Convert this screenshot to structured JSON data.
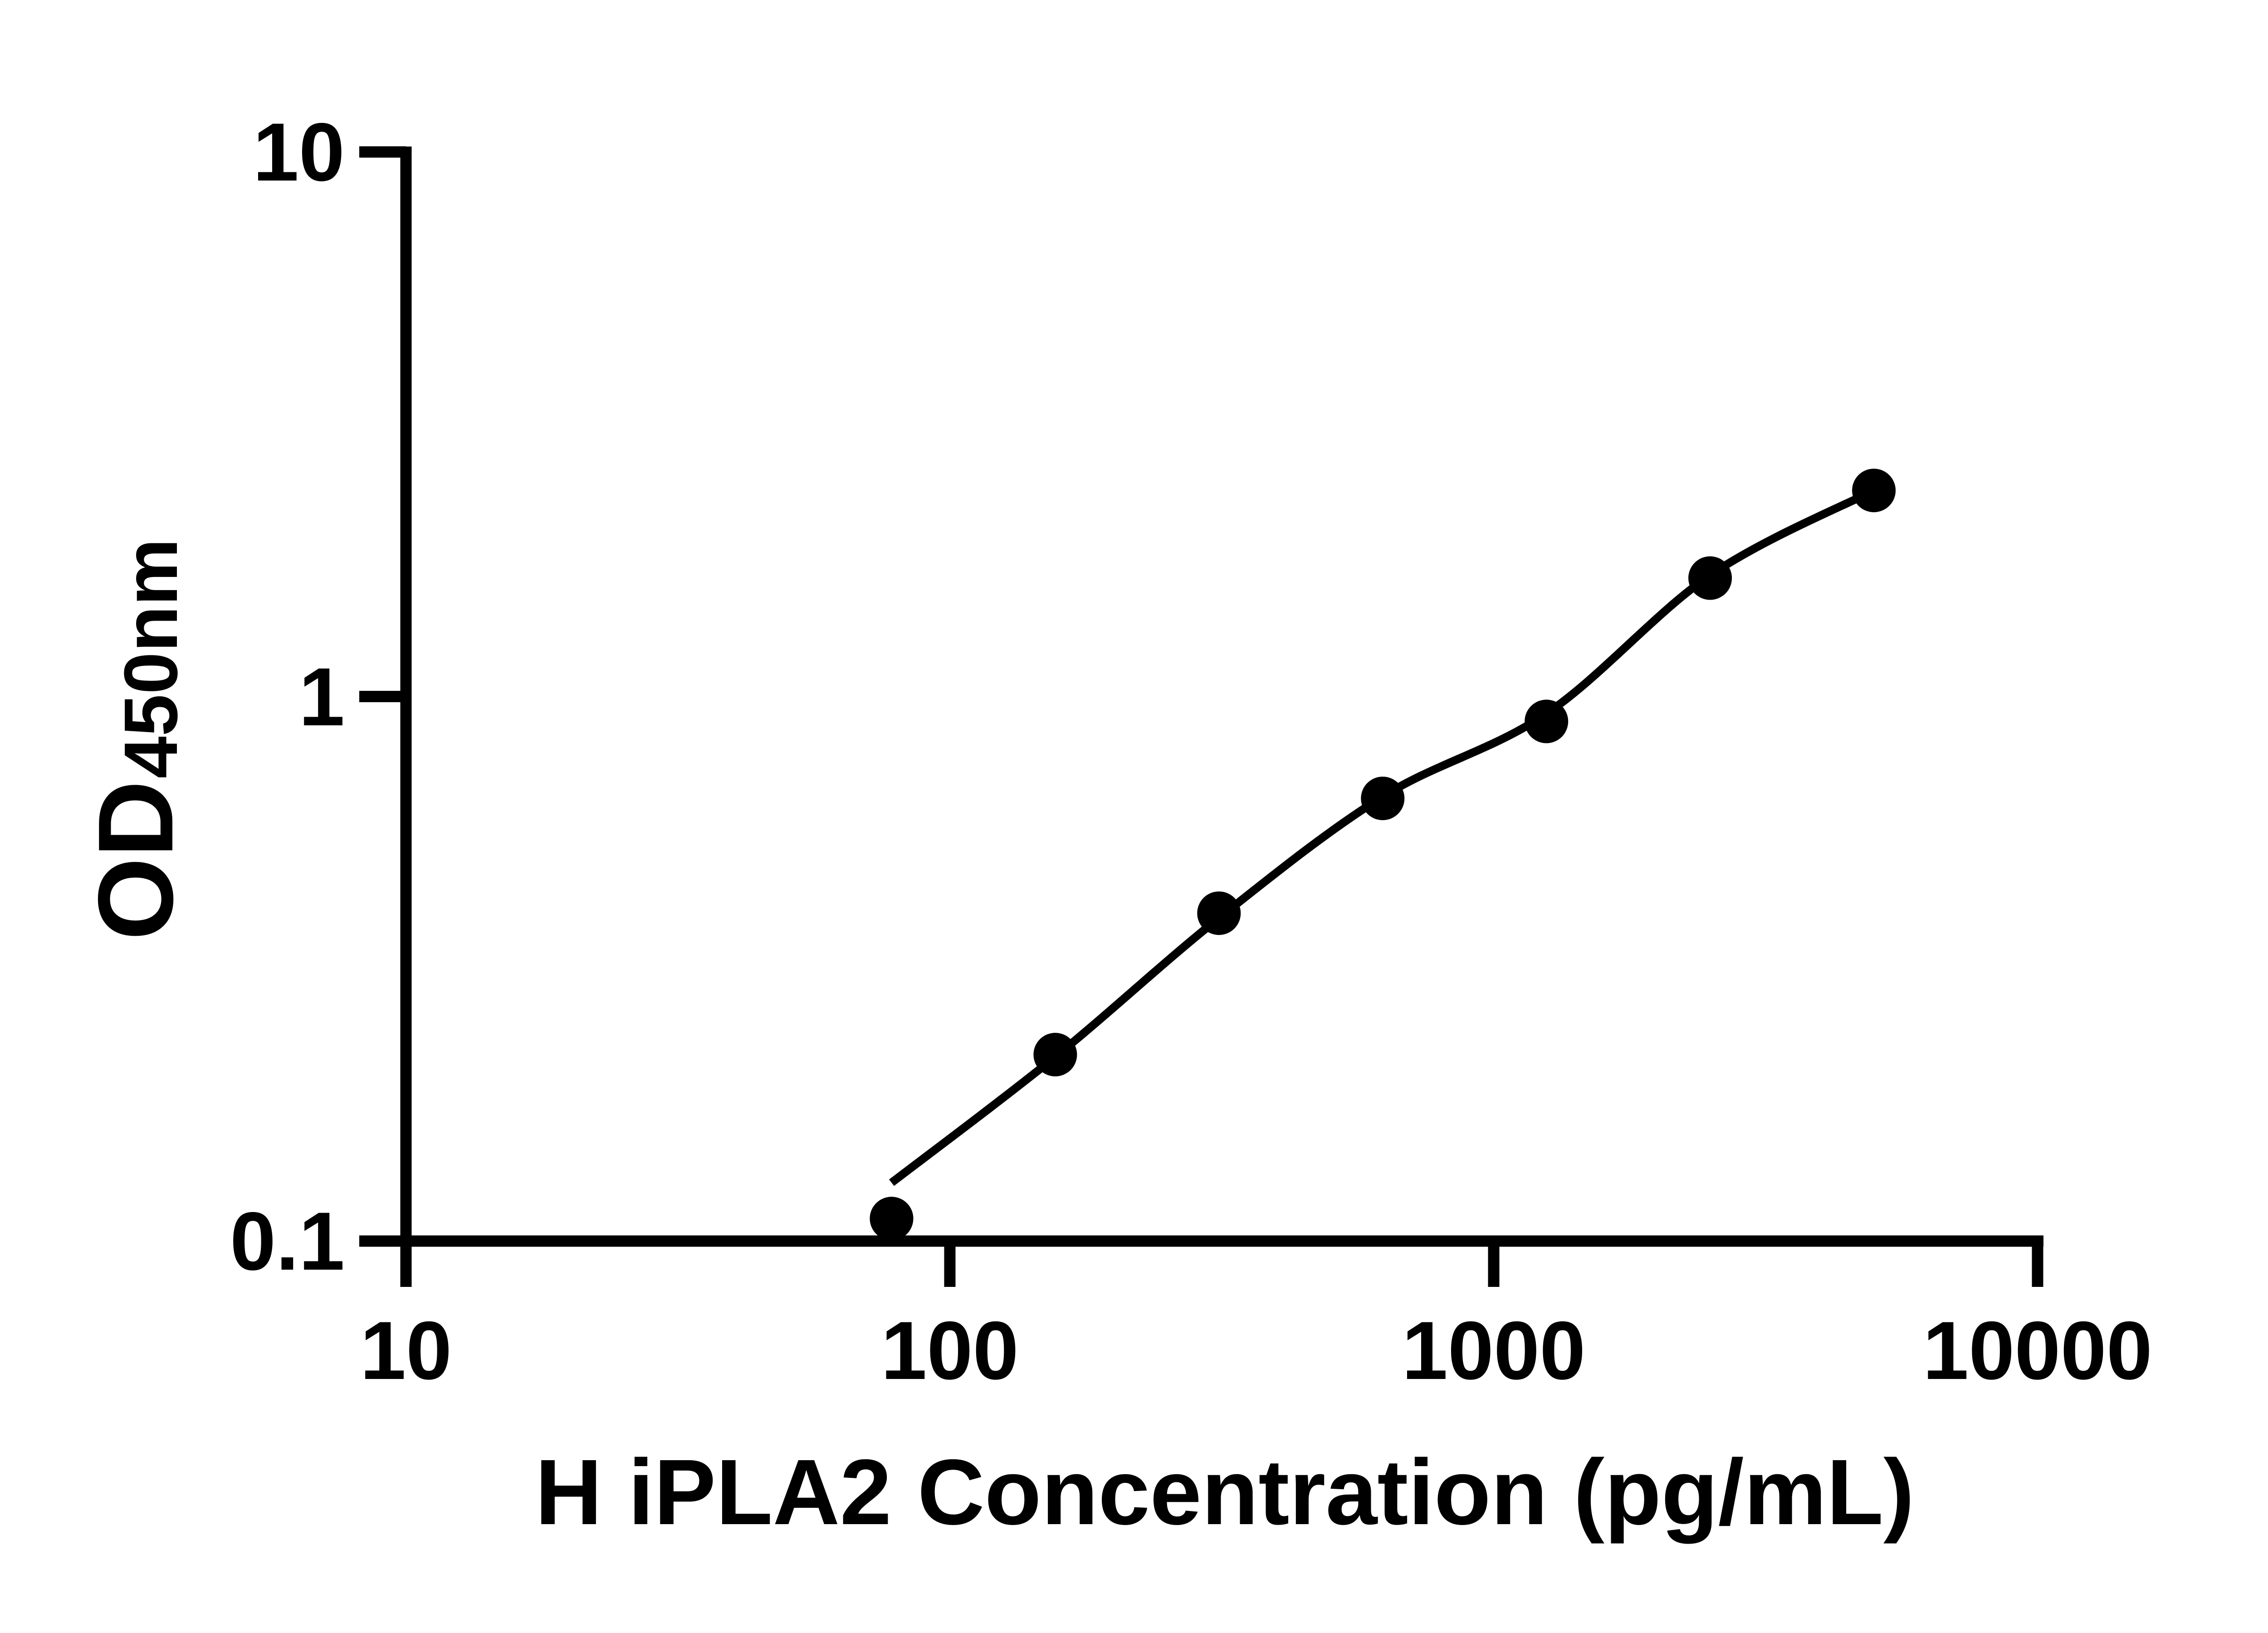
{
  "chart_data": {
    "type": "scatter",
    "title": "",
    "xlabel": "H iPLA2 Concentration (pg/mL)",
    "ylabel_base": "OD",
    "ylabel_subscript": "450nm",
    "x_scale": "log10",
    "y_scale": "log10",
    "xlim": [
      10,
      10000
    ],
    "ylim": [
      0.1,
      10
    ],
    "x_ticks": [
      10,
      100,
      1000,
      10000
    ],
    "x_tick_labels": [
      "10",
      "100",
      "1000",
      "10000"
    ],
    "y_ticks": [
      0.1,
      1,
      10
    ],
    "y_tick_labels": [
      "0.1",
      "1",
      "10"
    ],
    "grid": false,
    "legend": false,
    "colors": {
      "foreground": "#000000",
      "background": "#ffffff"
    },
    "series": [
      {
        "name": "standard-points",
        "type": "scatter",
        "marker": "filled-circle",
        "color": "#000000",
        "x": [
          78.125,
          156.25,
          312.5,
          625,
          1250,
          2500,
          5000
        ],
        "y": [
          0.11,
          0.22,
          0.4,
          0.65,
          0.9,
          1.65,
          2.39
        ]
      },
      {
        "name": "fit-line",
        "type": "line",
        "color": "#000000",
        "x": [
          78.125,
          156.25,
          312.5,
          625,
          1250,
          2500,
          5000
        ],
        "y": [
          0.128,
          0.218,
          0.392,
          0.655,
          0.93,
          1.67,
          2.39
        ]
      }
    ]
  }
}
